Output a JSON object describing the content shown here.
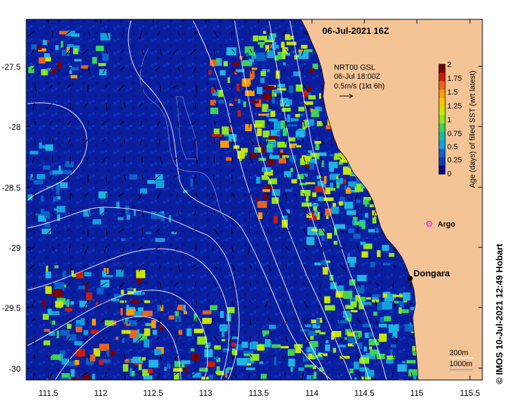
{
  "map": {
    "title": "06-Jul-2021 16Z",
    "credit": "© IMOS 10-Jul-2021 12:49 Hobart",
    "current_key": {
      "line1": "NRT00 GSL",
      "line2": "06-Jul 18:00Z",
      "line3": "0.5m/s (1kt 6h)"
    },
    "colorbar": {
      "title": "Age (days) of filled SST (wrt latest)",
      "ticks": [
        "2",
        "1.75",
        "1.5",
        "1.25",
        "1",
        "0.75",
        "0.5",
        "0.25",
        "0"
      ],
      "colors": [
        "#7a0000",
        "#c81e0a",
        "#e8641e",
        "#ff9b00",
        "#f5c800",
        "#c8e600",
        "#8ce61e",
        "#3cd25a",
        "#1eb4a0",
        "#14a0dc",
        "#0a64c8",
        "#0a3cb4",
        "#000a8c"
      ]
    },
    "places": [
      {
        "name": "Dongara",
        "kind": "town"
      },
      {
        "name": "Argo",
        "kind": "float"
      }
    ],
    "depth_key": [
      "200m",
      "1000m"
    ],
    "x_ticks": [
      "111.5",
      "112",
      "112.5",
      "113",
      "113.5",
      "114",
      "114.5",
      "115",
      "115.5"
    ],
    "y_ticks": [
      "-27.5",
      "-28",
      "-28.5",
      "-29",
      "-29.5",
      "-30"
    ],
    "colors": {
      "ocean": "#0a1fa0",
      "land": "#f5c496",
      "contour": "#ffffff",
      "argo": "#e040e0"
    }
  }
}
